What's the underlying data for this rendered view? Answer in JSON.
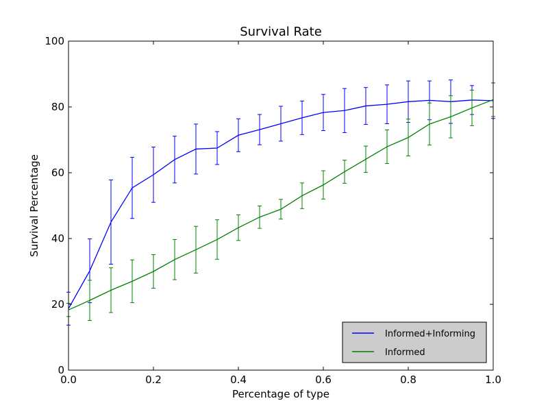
{
  "chart_data": {
    "type": "line",
    "title": "Survival Rate",
    "xlabel": "Percentage of type",
    "ylabel": "Survival Percentage",
    "xlim": [
      0.0,
      1.0
    ],
    "ylim": [
      0,
      100
    ],
    "x_ticks": [
      0.0,
      0.2,
      0.4,
      0.6,
      0.8,
      1.0
    ],
    "x_tick_labels": [
      "0.0",
      "0.2",
      "0.4",
      "0.6",
      "0.8",
      "1.0"
    ],
    "y_ticks": [
      0,
      20,
      40,
      60,
      80,
      100
    ],
    "y_tick_labels": [
      "0",
      "20",
      "40",
      "60",
      "80",
      "100"
    ],
    "grid": false,
    "legend_position": "lower-right",
    "x": [
      0.0,
      0.05,
      0.1,
      0.15,
      0.2,
      0.25,
      0.3,
      0.35,
      0.4,
      0.45,
      0.5,
      0.55,
      0.6,
      0.65,
      0.7,
      0.75,
      0.8,
      0.85,
      0.9,
      0.95,
      1.0
    ],
    "series": [
      {
        "name": "Informed+Informing",
        "color": "#0000ff",
        "values": [
          18.7,
          30.2,
          45.0,
          55.4,
          59.4,
          64.0,
          67.2,
          67.5,
          71.4,
          73.1,
          74.9,
          76.7,
          78.3,
          78.9,
          80.3,
          80.8,
          81.6,
          82.0,
          81.6,
          82.1,
          81.9
        ],
        "error": [
          5.0,
          9.7,
          12.8,
          9.3,
          8.4,
          7.1,
          7.6,
          5.0,
          5.0,
          4.6,
          5.3,
          5.1,
          5.5,
          6.7,
          5.6,
          5.9,
          6.3,
          5.9,
          6.6,
          4.4,
          5.4
        ]
      },
      {
        "name": "Informed",
        "color": "#008000",
        "values": [
          18.3,
          21.2,
          24.3,
          27.0,
          30.0,
          33.6,
          36.6,
          39.7,
          43.3,
          46.5,
          48.9,
          53.0,
          56.3,
          60.3,
          64.1,
          67.9,
          70.7,
          74.8,
          77.0,
          79.7,
          82.2
        ],
        "error": [
          2.0,
          6.1,
          6.8,
          6.5,
          5.1,
          6.1,
          7.1,
          6.0,
          3.9,
          3.4,
          3.0,
          3.9,
          4.3,
          3.5,
          4.0,
          5.1,
          5.6,
          6.4,
          6.4,
          5.4,
          5.1
        ]
      }
    ]
  }
}
